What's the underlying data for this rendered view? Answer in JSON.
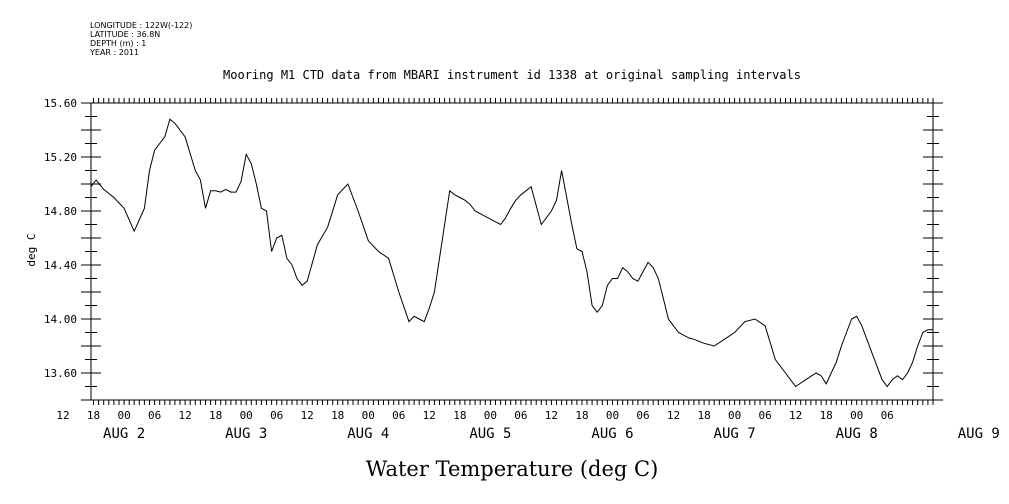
{
  "metadata": {
    "longitude": "LONGITUDE : 122W(-122)",
    "latitude": "LATITUDE : 36.8N",
    "depth": "DEPTH (m) : 1",
    "year": "YEAR : 2011"
  },
  "chart_data": {
    "type": "line",
    "title": "Mooring M1 CTD data from MBARI instrument id 1338 at original sampling intervals",
    "xlabel": "Water Temperature (deg C)",
    "ylabel": "deg C",
    "ylim": [
      13.4,
      15.6
    ],
    "yticks": [
      "15.60",
      "15.20",
      "14.80",
      "14.40",
      "14.00",
      "13.60"
    ],
    "xlim_hours": [
      -6.5,
      159
    ],
    "xticks_hours": [
      "12",
      "18",
      "00",
      "06",
      "12",
      "18",
      "00",
      "06",
      "12",
      "18",
      "00",
      "06",
      "12",
      "18",
      "00",
      "06",
      "12",
      "18",
      "00",
      "06",
      "12",
      "18",
      "00",
      "06",
      "12",
      "18",
      "00",
      "06"
    ],
    "day_labels": [
      "AUG 2",
      "AUG 3",
      "AUG 4",
      "AUG 5",
      "AUG 6",
      "AUG 7",
      "AUG 8",
      "AUG 9"
    ],
    "x_unit": "hours after 2011-08-02 00:00",
    "line_color": "#000000",
    "series": [
      {
        "x": [
          -6.5,
          -5.5,
          -4,
          -2,
          0,
          2,
          4,
          5,
          6,
          7,
          8,
          9,
          10,
          12,
          14,
          15,
          16,
          17,
          18,
          19,
          20,
          21,
          22,
          23,
          24,
          25,
          26,
          27,
          28,
          29,
          30,
          31,
          32,
          33,
          34,
          35,
          36,
          38,
          40,
          42,
          44,
          46,
          48,
          50,
          52,
          54,
          56,
          57,
          58,
          59,
          60,
          61,
          62,
          63,
          64,
          65,
          66,
          67,
          68,
          69,
          70,
          71,
          72,
          73,
          74,
          75,
          76,
          77,
          78,
          80,
          82,
          84,
          85,
          86,
          87,
          88,
          89,
          90,
          91,
          92,
          93,
          94,
          95,
          96,
          97,
          98,
          99,
          100,
          101,
          102,
          103,
          104,
          105,
          106,
          107,
          108,
          109,
          110,
          111,
          112,
          114,
          116,
          118,
          120,
          122,
          124,
          126,
          128,
          130,
          132,
          134,
          136,
          137,
          138,
          139,
          140,
          141,
          142,
          143,
          144,
          145,
          146,
          147,
          148,
          149,
          150,
          151,
          152,
          153,
          154,
          155,
          156,
          157,
          158,
          159
        ],
        "y": [
          14.98,
          15.03,
          14.96,
          14.9,
          14.82,
          14.65,
          14.82,
          15.1,
          15.25,
          15.3,
          15.35,
          15.48,
          15.45,
          15.35,
          15.1,
          15.03,
          14.82,
          14.95,
          14.95,
          14.94,
          14.96,
          14.94,
          14.94,
          15.02,
          15.22,
          15.15,
          15.0,
          14.82,
          14.8,
          14.5,
          14.6,
          14.62,
          14.45,
          14.4,
          14.3,
          14.25,
          14.28,
          14.55,
          14.68,
          14.92,
          15.0,
          14.8,
          14.58,
          14.5,
          14.45,
          14.2,
          13.98,
          14.02,
          14.0,
          13.98,
          14.08,
          14.2,
          14.45,
          14.7,
          14.95,
          14.92,
          14.9,
          14.88,
          14.85,
          14.8,
          14.78,
          14.76,
          14.74,
          14.72,
          14.7,
          14.75,
          14.82,
          14.88,
          14.92,
          14.98,
          14.7,
          14.8,
          14.88,
          15.1,
          14.9,
          14.7,
          14.52,
          14.5,
          14.35,
          14.1,
          14.05,
          14.1,
          14.25,
          14.3,
          14.3,
          14.38,
          14.35,
          14.3,
          14.28,
          14.35,
          14.42,
          14.38,
          14.3,
          14.15,
          14.0,
          13.95,
          13.9,
          13.88,
          13.86,
          13.85,
          13.82,
          13.8,
          13.85,
          13.9,
          13.98,
          14.0,
          13.95,
          13.7,
          13.6,
          13.5,
          13.55,
          13.6,
          13.58,
          13.52,
          13.6,
          13.68,
          13.8,
          13.9,
          14.0,
          14.02,
          13.95,
          13.85,
          13.75,
          13.65,
          13.55,
          13.5,
          13.55,
          13.58,
          13.55,
          13.6,
          13.68,
          13.8,
          13.9,
          13.92,
          13.92
        ]
      }
    ]
  }
}
